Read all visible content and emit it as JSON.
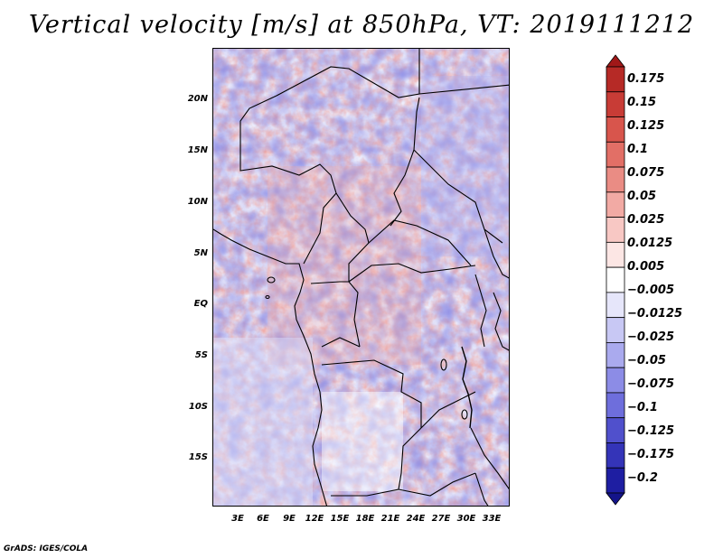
{
  "title": "Vertical velocity [m/s] at 850hPa, VT: 2019111212",
  "credit": "GrADS: IGES/COLA",
  "map": {
    "lat_labels": [
      "20N",
      "15N",
      "10N",
      "5N",
      "EQ",
      "5S",
      "10S",
      "15S"
    ],
    "lon_labels": [
      "3E",
      "6E",
      "9E",
      "12E",
      "15E",
      "18E",
      "21E",
      "24E",
      "27E",
      "30E",
      "33E"
    ]
  },
  "colorbar": {
    "labels": [
      "0.175",
      "0.15",
      "0.125",
      "0.1",
      "0.075",
      "0.05",
      "0.025",
      "0.0125",
      "0.005",
      "−0.005",
      "−0.0125",
      "−0.025",
      "−0.05",
      "−0.075",
      "−0.1",
      "−0.125",
      "−0.175",
      "−0.2"
    ],
    "colors": [
      "#a01818",
      "#b62a26",
      "#c83c36",
      "#d8554c",
      "#e26f66",
      "#ea8c84",
      "#f2aaa4",
      "#f8c8c4",
      "#fce6e4",
      "#ffffff",
      "#e6e6fa",
      "#c8c8f4",
      "#aaaaee",
      "#8c8ce6",
      "#6e6edc",
      "#5050cc",
      "#3434b8",
      "#1e1ea2",
      "#14148a"
    ]
  }
}
